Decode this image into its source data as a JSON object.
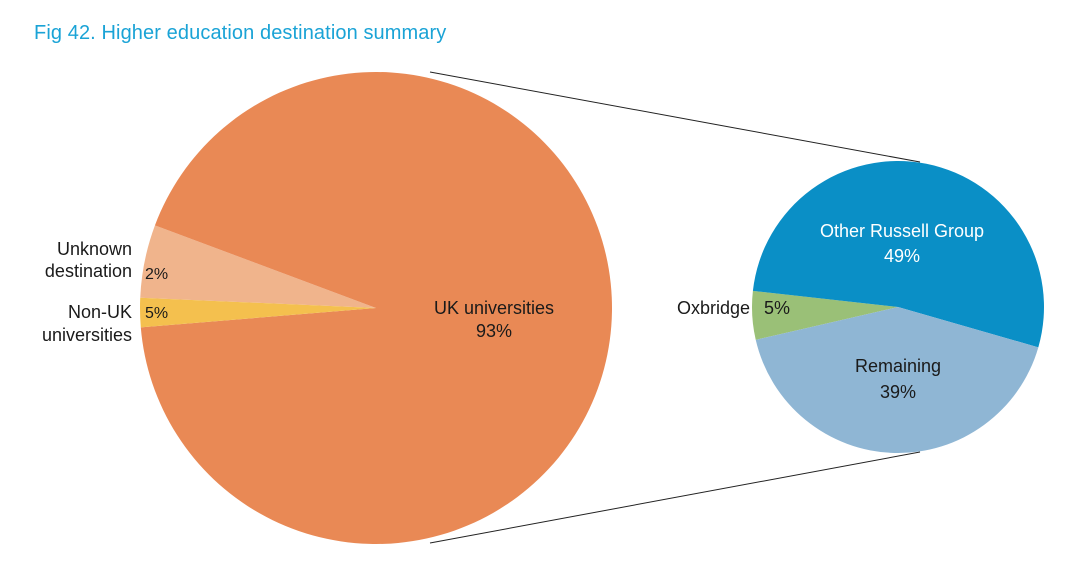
{
  "title": "Fig 42. Higher education destination summary",
  "chart_data": [
    {
      "type": "pie",
      "slices": [
        {
          "label": "UK universities",
          "value": 93,
          "value_label": "93%",
          "color": "#e98955"
        },
        {
          "label_lines": [
            "Unknown",
            "destination"
          ],
          "value": 2,
          "value_label": "2%",
          "color": "#f4c04e"
        },
        {
          "label_lines": [
            "Non-UK",
            "universities"
          ],
          "value": 5,
          "value_label": "5%",
          "color": "#f0b48c"
        }
      ]
    },
    {
      "type": "pie",
      "breakdown_of": "UK universities",
      "slices": [
        {
          "label": "Other Russell Group",
          "value": 49,
          "value_label": "49%",
          "color": "#0a8fc6"
        },
        {
          "label": "Oxbridge",
          "value": 5,
          "value_label": "5%",
          "color": "#9ac077"
        },
        {
          "label": "Remaining",
          "value": 39,
          "value_label": "39%",
          "color": "#8fb6d4"
        }
      ]
    }
  ]
}
